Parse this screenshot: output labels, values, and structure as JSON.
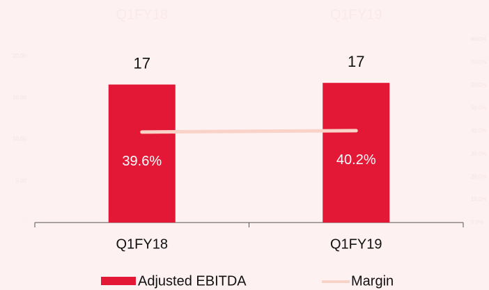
{
  "chart_data": {
    "type": "bar_line",
    "top_labels": [
      "Q1FY18",
      "Q1FY19"
    ],
    "categories": [
      "Q1FY18",
      "Q1FY19"
    ],
    "series": [
      {
        "name": "Adjusted EBITDA",
        "color": "#e31837",
        "values": [
          16.6,
          16.8
        ],
        "value_labels": [
          "17",
          "17"
        ]
      },
      {
        "name": "Margin",
        "color": "#f9d3c8",
        "axis": "y2",
        "values": [
          39.6,
          40.2
        ],
        "value_labels": [
          "39.6%",
          "40.2%"
        ]
      }
    ],
    "ylim": [
      0,
      22
    ],
    "yticks": [
      {
        "value": 0,
        "label": "-"
      },
      {
        "value": 5,
        "label": "5.00"
      },
      {
        "value": 10,
        "label": "10.00"
      },
      {
        "value": 15,
        "label": "15.00"
      },
      {
        "value": 20,
        "label": "20.00"
      }
    ],
    "y2lim": [
      0,
      80
    ],
    "y2ticks": [
      {
        "value": 0,
        "label": "0.0%"
      },
      {
        "value": 10,
        "label": "10.0%"
      },
      {
        "value": 20,
        "label": "20.0%"
      },
      {
        "value": 30,
        "label": "30.0%"
      },
      {
        "value": 40,
        "label": "40.0%"
      },
      {
        "value": 50,
        "label": "50.0%"
      },
      {
        "value": 60,
        "label": "60.0%"
      },
      {
        "value": 70,
        "label": "70.0%"
      },
      {
        "value": 80,
        "label": "80.0%"
      }
    ],
    "legend": "bottom"
  }
}
